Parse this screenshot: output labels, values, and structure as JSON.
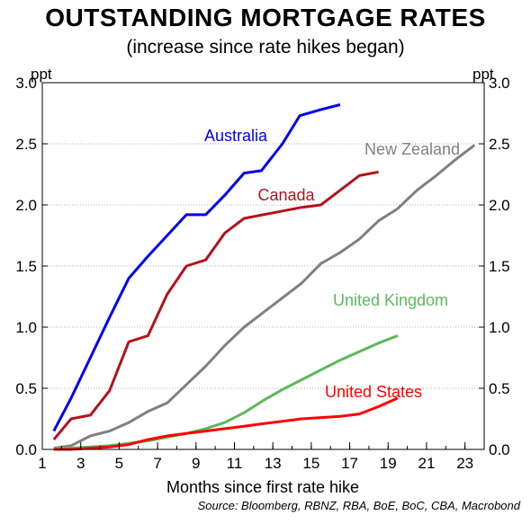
{
  "chart_data": {
    "type": "line",
    "title": "OUTSTANDING MORTGAGE RATES",
    "subtitle": "(increase since rate hikes began)",
    "unit_left": "ppt",
    "unit_right": "ppt",
    "xlabel": "Months since first rate hike",
    "source": "Source: Bloomberg, RBNZ, RBA, BoE, BoC, CBA, Macrobond",
    "xlim": [
      1,
      24
    ],
    "ylim": [
      0,
      3
    ],
    "x_ticks": [
      1,
      3,
      5,
      7,
      9,
      11,
      13,
      15,
      17,
      19,
      21,
      23
    ],
    "y_ticks": [
      "0.0",
      "0.5",
      "1.0",
      "1.5",
      "2.0",
      "2.5",
      "3.0"
    ],
    "grid": "horizontal dotted",
    "series": [
      {
        "name": "Australia",
        "color": "#0000ee",
        "x": [
          1.6,
          2.5,
          3.5,
          4.5,
          5.5,
          6.5,
          7.5,
          8.5,
          9.5,
          10.5,
          11.5,
          12.4,
          13.5,
          14.4,
          15.5,
          16.5
        ],
        "y": [
          0.15,
          0.42,
          0.75,
          1.08,
          1.4,
          1.58,
          1.75,
          1.92,
          1.92,
          2.08,
          2.26,
          2.28,
          2.5,
          2.73,
          2.78,
          2.82
        ]
      },
      {
        "name": "Canada",
        "color": "#b5121b",
        "x": [
          1.6,
          2.5,
          3.5,
          4.5,
          5.5,
          6.5,
          7.5,
          8.5,
          9.5,
          10.5,
          11.5,
          12.5,
          13.5,
          14.5,
          15.5,
          16.5,
          17.5,
          18.5
        ],
        "y": [
          0.08,
          0.25,
          0.28,
          0.48,
          0.88,
          0.93,
          1.27,
          1.5,
          1.55,
          1.77,
          1.89,
          1.92,
          1.95,
          1.98,
          2.0,
          2.12,
          2.24,
          2.27
        ]
      },
      {
        "name": "New Zealand",
        "color": "#808080",
        "x": [
          1.6,
          2.5,
          3.5,
          4.5,
          5.5,
          6.5,
          7.5,
          8.5,
          9.5,
          10.5,
          11.5,
          12.5,
          13.5,
          14.5,
          15.5,
          16.5,
          17.5,
          18.5,
          19.5,
          20.5,
          21.5,
          22.5,
          23.5
        ],
        "y": [
          0.01,
          0.03,
          0.11,
          0.15,
          0.22,
          0.31,
          0.38,
          0.53,
          0.68,
          0.85,
          1.0,
          1.12,
          1.24,
          1.36,
          1.52,
          1.61,
          1.72,
          1.87,
          1.97,
          2.12,
          2.24,
          2.37,
          2.49
        ]
      },
      {
        "name": "United Kingdom",
        "color": "#5cb85c",
        "x": [
          1.6,
          2.5,
          3.5,
          4.5,
          5.5,
          6.5,
          7.5,
          8.5,
          9.5,
          10.5,
          11.5,
          12.5,
          13.5,
          14.5,
          15.5,
          16.5,
          17.5,
          18.5,
          19.5
        ],
        "y": [
          0.01,
          0.01,
          0.02,
          0.03,
          0.05,
          0.07,
          0.1,
          0.13,
          0.17,
          0.22,
          0.3,
          0.4,
          0.49,
          0.57,
          0.65,
          0.73,
          0.8,
          0.87,
          0.93
        ]
      },
      {
        "name": "United States",
        "color": "#ff0000",
        "x": [
          1.6,
          2.5,
          3.5,
          4.5,
          5.5,
          6.5,
          7.5,
          8.5,
          9.5,
          10.5,
          11.5,
          12.5,
          13.5,
          14.5,
          15.5,
          16.5,
          17.5,
          18.5,
          19.5
        ],
        "y": [
          0.0,
          0.0,
          0.01,
          0.02,
          0.04,
          0.08,
          0.11,
          0.13,
          0.15,
          0.17,
          0.19,
          0.21,
          0.23,
          0.25,
          0.26,
          0.27,
          0.29,
          0.35,
          0.42
        ]
      }
    ]
  }
}
